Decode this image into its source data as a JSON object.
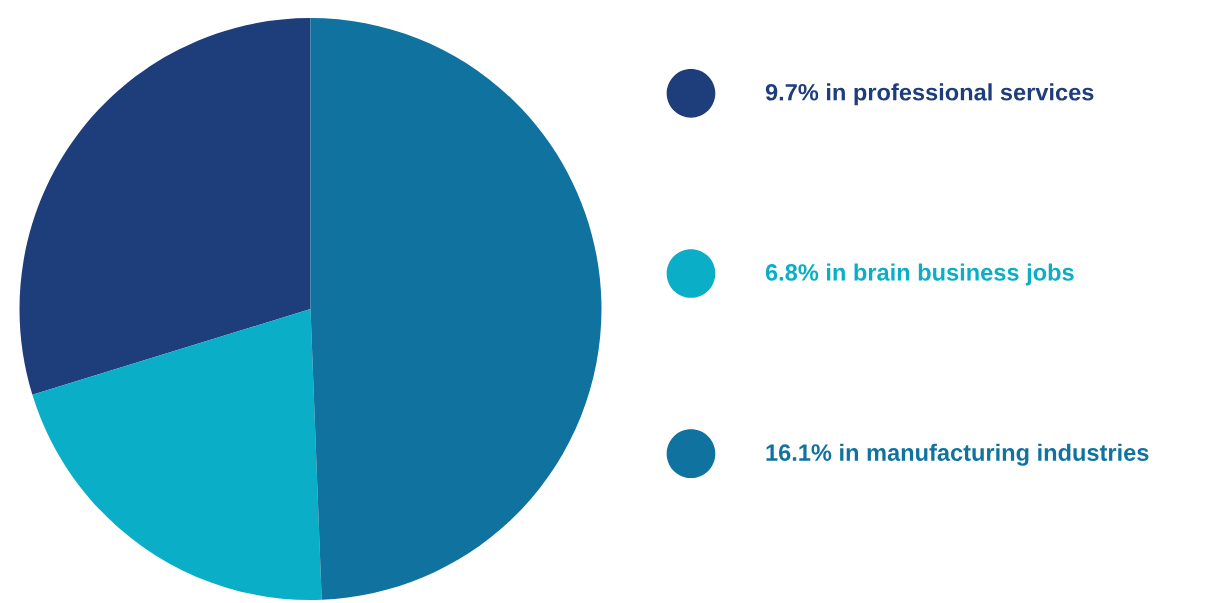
{
  "chart_data": {
    "type": "pie",
    "categories": [
      "9.7% in professional services",
      "6.8% in brain business jobs",
      "16.1% in manufacturing industries"
    ],
    "values": [
      9.7,
      6.8,
      16.1
    ],
    "colors": [
      "#1e3d7b",
      "#0aaec6",
      "#0f729f"
    ],
    "legend": "right"
  }
}
